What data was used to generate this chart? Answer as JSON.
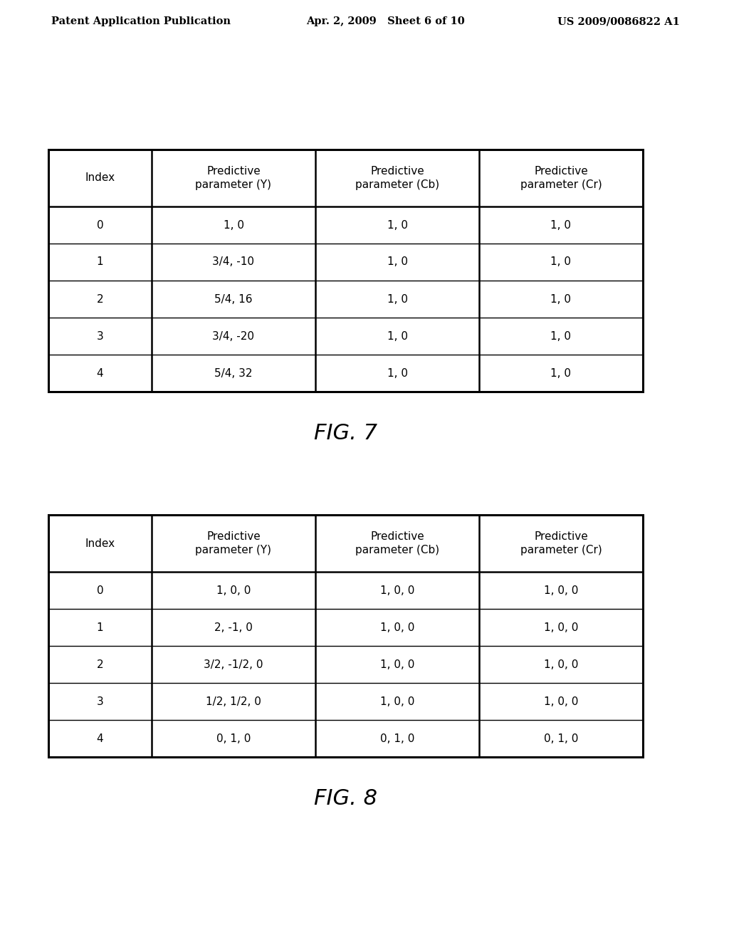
{
  "header_left": "Patent Application Publication",
  "header_mid": "Apr. 2, 2009   Sheet 6 of 10",
  "header_right": "US 2009/0086822 A1",
  "fig7_label": "FIG. 7",
  "fig8_label": "FIG. 8",
  "table1": {
    "headers": [
      "Index",
      "Predictive\nparameter (Y)",
      "Predictive\nparameter (Cb)",
      "Predictive\nparameter (Cr)"
    ],
    "rows": [
      [
        "0",
        "1, 0",
        "1, 0",
        "1, 0"
      ],
      [
        "1",
        "3/4, -10",
        "1, 0",
        "1, 0"
      ],
      [
        "2",
        "5/4, 16",
        "1, 0",
        "1, 0"
      ],
      [
        "3",
        "3/4, -20",
        "1, 0",
        "1, 0"
      ],
      [
        "4",
        "5/4, 32",
        "1, 0",
        "1, 0"
      ]
    ]
  },
  "table2": {
    "headers": [
      "Index",
      "Predictive\nparameter (Y)",
      "Predictive\nparameter (Cb)",
      "Predictive\nparameter (Cr)"
    ],
    "rows": [
      [
        "0",
        "1, 0, 0",
        "1, 0, 0",
        "1, 0, 0"
      ],
      [
        "1",
        "2, -1, 0",
        "1, 0, 0",
        "1, 0, 0"
      ],
      [
        "2",
        "3/2, -1/2, 0",
        "1, 0, 0",
        "1, 0, 0"
      ],
      [
        "3",
        "1/2, 1/2, 0",
        "1, 0, 0",
        "1, 0, 0"
      ],
      [
        "4",
        "0, 1, 0",
        "0, 1, 0",
        "0, 1, 0"
      ]
    ]
  },
  "bg_color": "#ffffff",
  "text_color": "#000000",
  "line_color": "#000000",
  "header_fontsize": 10.5,
  "table_header_fontsize": 11,
  "table_data_fontsize": 11,
  "fig_label_fontsize": 22,
  "page_width": 10.24,
  "page_height": 13.2,
  "dpi": 100
}
